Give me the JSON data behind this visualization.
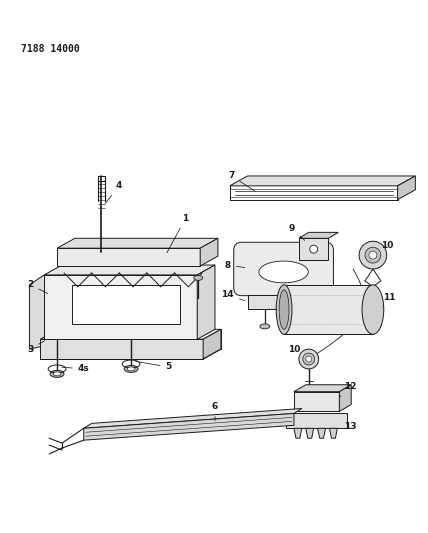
{
  "title": "7188 14000",
  "bg": "#ffffff",
  "lc": "#1a1a1a",
  "fig_w": 4.28,
  "fig_h": 5.33,
  "dpi": 100
}
